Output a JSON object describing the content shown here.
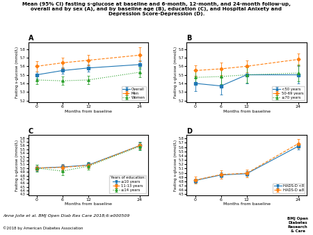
{
  "title": "Mean (95% CI) fasting s-glucose at baseline and 6-month, 12-month, and 24-month follow-up,\noverall and by sex (A), and by baseline age (B), education (C), and Hospital Anixety and\nDepression Score-Depression (D).",
  "annotations": [
    "Anne Jolle et al. BMJ Open Diab Res Care 2018;6:e000509",
    "©2018 by American Diabetes Association",
    "BMJ Open\nDiabetes\nResearch\n& Care"
  ],
  "chart_data": [
    {
      "type": "line",
      "title": "A",
      "xlabel": "Months from baseline",
      "ylabel": "Fasting s-glucose (mmol/L)",
      "x": [
        0,
        6,
        12,
        24
      ],
      "xlim": [
        -2,
        26
      ],
      "xticks": [
        0,
        6,
        12,
        24
      ],
      "ylim": [
        5.18,
        5.88
      ],
      "yticks": [
        5.2,
        5.3,
        5.4,
        5.5,
        5.6,
        5.7,
        5.8
      ],
      "legend": "lower right",
      "series": [
        {
          "name": "Overall",
          "line_style": "solid",
          "marker": "square",
          "values": [
            5.5,
            5.55,
            5.58,
            5.62
          ],
          "error_low": [
            0.04,
            0.04,
            0.04,
            0.05
          ],
          "error_high": [
            0.04,
            0.04,
            0.04,
            0.05
          ]
        },
        {
          "name": "Men",
          "line_style": "dashed",
          "marker": "diamond",
          "values": [
            5.6,
            5.64,
            5.67,
            5.73
          ],
          "error_low": [
            0.06,
            0.06,
            0.06,
            0.07
          ],
          "error_high": [
            0.06,
            0.06,
            0.06,
            0.09
          ]
        },
        {
          "name": "Women",
          "line_style": "dotted",
          "marker": "triangle",
          "values": [
            5.44,
            5.43,
            5.44,
            5.53
          ],
          "error_low": [
            0.05,
            0.05,
            0.05,
            0.06
          ],
          "error_high": [
            0.05,
            0.05,
            0.05,
            0.06
          ]
        }
      ]
    },
    {
      "type": "line",
      "title": "B",
      "xlabel": "Months from baseline",
      "ylabel": "Fasting s-glucose (mmol/L)",
      "x": [
        0,
        6,
        12,
        24
      ],
      "xlim": [
        -2,
        26
      ],
      "xticks": [
        0,
        6,
        12,
        24
      ],
      "ylim": [
        5.18,
        5.88
      ],
      "yticks": [
        5.2,
        5.3,
        5.4,
        5.5,
        5.6,
        5.7,
        5.8
      ],
      "legend": "lower right",
      "series": [
        {
          "name": "<50 years",
          "line_style": "solid",
          "marker": "square",
          "values": [
            5.4,
            5.37,
            5.5,
            5.5
          ],
          "error_low": [
            0.09,
            0.1,
            0.1,
            0.1
          ],
          "error_high": [
            0.09,
            0.1,
            0.1,
            0.1
          ]
        },
        {
          "name": "50-69 years",
          "line_style": "dashed",
          "marker": "diamond",
          "values": [
            5.55,
            5.57,
            5.6,
            5.68
          ],
          "error_low": [
            0.06,
            0.07,
            0.07,
            0.07
          ],
          "error_high": [
            0.06,
            0.07,
            0.07,
            0.07
          ]
        },
        {
          "name": "≥70 years",
          "line_style": "dotted",
          "marker": "triangle",
          "values": [
            5.47,
            5.48,
            5.5,
            5.52
          ],
          "error_low": [
            0.09,
            0.09,
            0.09,
            0.1
          ],
          "error_high": [
            0.09,
            0.09,
            0.09,
            0.1
          ]
        }
      ]
    },
    {
      "type": "line",
      "title": "C",
      "xlabel": "Months from baseline",
      "ylabel": "Fasting s-glucose (mmol/L)",
      "x": [
        0,
        6,
        12,
        24
      ],
      "xlim": [
        -2,
        26
      ],
      "xticks": [
        0,
        6,
        12,
        24
      ],
      "ylim": [
        4.28,
        5.88
      ],
      "yticks": [
        4.3,
        4.4,
        4.5,
        4.6,
        4.7,
        4.8,
        4.9,
        5.0,
        5.1,
        5.2,
        5.3,
        5.4,
        5.5,
        5.6,
        5.7,
        5.8
      ],
      "legend": "lower right",
      "legend_title": "Years of education:",
      "series": [
        {
          "name": "≤10 years",
          "line_style": "solid",
          "marker": "square",
          "values": [
            5.0,
            5.03,
            5.08,
            5.6
          ],
          "error_low": [
            0.08,
            0.08,
            0.09,
            0.1
          ],
          "error_high": [
            0.08,
            0.08,
            0.09,
            0.1
          ]
        },
        {
          "name": "11-13 years",
          "line_style": "dashed",
          "marker": "diamond",
          "values": [
            5.0,
            5.02,
            5.07,
            5.6
          ],
          "error_low": [
            0.06,
            0.07,
            0.07,
            0.08
          ],
          "error_high": [
            0.06,
            0.07,
            0.07,
            0.08
          ]
        },
        {
          "name": "≥14 years",
          "line_style": "dotted",
          "marker": "triangle",
          "values": [
            5.0,
            4.92,
            5.05,
            5.58
          ],
          "error_low": [
            0.09,
            0.11,
            0.1,
            0.11
          ],
          "error_high": [
            0.09,
            0.11,
            0.1,
            0.11
          ]
        }
      ]
    },
    {
      "type": "line",
      "title": "D",
      "xlabel": "Months from baseline",
      "ylabel": "Fasting s-glucose (mmol/L)",
      "x": [
        0,
        6,
        12,
        24
      ],
      "xlim": [
        -2,
        26
      ],
      "xticks": [
        0,
        6,
        12,
        24
      ],
      "ylim": [
        4.48,
        5.88
      ],
      "yticks": [
        4.5,
        4.6,
        4.7,
        4.8,
        4.9,
        5.0,
        5.1,
        5.2,
        5.3,
        5.4,
        5.5,
        5.6,
        5.7,
        5.8
      ],
      "legend": "lower right",
      "series": [
        {
          "name": "HADS-D <8",
          "line_style": "solid",
          "marker": "square",
          "values": [
            4.82,
            4.95,
            4.98,
            5.62
          ],
          "error_low": [
            0.05,
            0.06,
            0.06,
            0.07
          ],
          "error_high": [
            0.05,
            0.06,
            0.06,
            0.07
          ]
        },
        {
          "name": "HADS-D ≥8",
          "line_style": "dashed",
          "marker": "diamond",
          "values": [
            4.83,
            4.96,
            4.99,
            5.68
          ],
          "error_low": [
            0.08,
            0.09,
            0.09,
            0.11
          ],
          "error_high": [
            0.08,
            0.09,
            0.09,
            0.11
          ]
        }
      ]
    }
  ]
}
